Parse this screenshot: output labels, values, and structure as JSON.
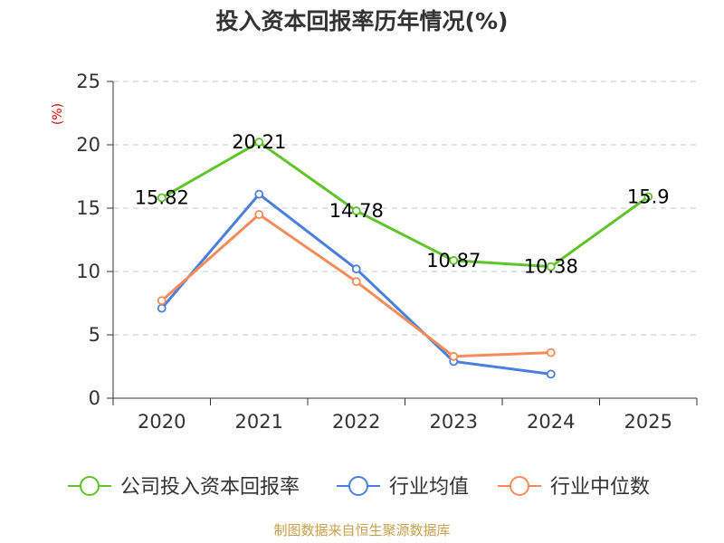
{
  "chart_data": {
    "type": "line",
    "title": "投入资本回报率历年情况(%)",
    "ylabel": "(%)",
    "xlabel": "",
    "categories": [
      "2020",
      "2021",
      "2022",
      "2023",
      "2024",
      "2025"
    ],
    "ylim": [
      0,
      25
    ],
    "yticks": [
      "0",
      "5",
      "10",
      "15",
      "20",
      "25"
    ],
    "grid": true,
    "legend_position": "bottom",
    "series": [
      {
        "name": "公司投入资本回报率",
        "color": "#5ec42a",
        "values": [
          15.82,
          20.21,
          14.78,
          10.87,
          10.38,
          15.9
        ],
        "labels": [
          "15.82",
          "20.21",
          "14.78",
          "10.87",
          "10.38",
          "15.9"
        ]
      },
      {
        "name": "行业均值",
        "color": "#4a7fde",
        "values": [
          7.1,
          16.1,
          10.2,
          2.9,
          1.9,
          null
        ]
      },
      {
        "name": "行业中位数",
        "color": "#f48c5a",
        "values": [
          7.7,
          14.5,
          9.2,
          3.3,
          3.6,
          null
        ]
      }
    ]
  },
  "source_note": "制图数据来自恒生聚源数据库"
}
